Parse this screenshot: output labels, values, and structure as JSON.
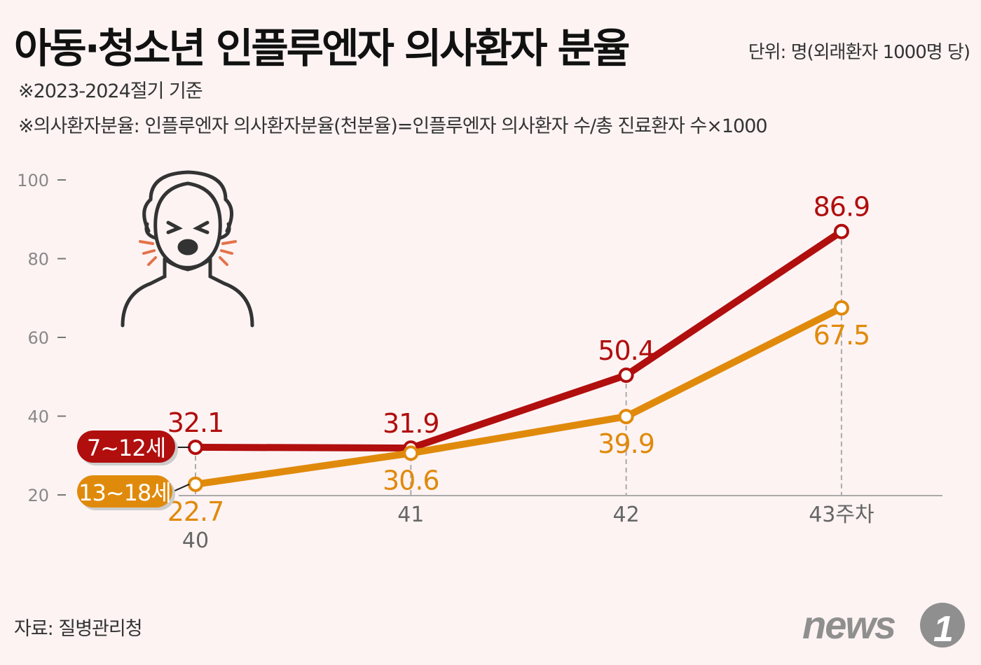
{
  "header": {
    "title": "아동·청소년 인플루엔자 의사환자 분율",
    "unit": "단위: 명(외래환자 1000명 당)",
    "notes": [
      "※2023-2024절기 기준",
      "※의사환자분율: 인플루엔자 의사환자분율(천분율)=인플루엔자 의사환자 수/총 진료환자 수×1000"
    ]
  },
  "footer": {
    "source": "자료: 질병관리청",
    "logo": "news1"
  },
  "chart_data": {
    "type": "line",
    "categories": [
      "40",
      "41",
      "42",
      "43주차"
    ],
    "yticks": [
      "20",
      "40",
      "60",
      "80",
      "100"
    ],
    "ylim": [
      20,
      100
    ],
    "grid": false,
    "legend": "left, labels at series start",
    "series": [
      {
        "name": "7~12세",
        "color": "#b10e0e",
        "values": [
          32.1,
          31.9,
          50.4,
          86.9
        ],
        "labels": [
          "32.1",
          "31.9",
          "50.4",
          "86.9"
        ]
      },
      {
        "name": "13~18세",
        "color": "#e08a0c",
        "values": [
          22.7,
          30.6,
          39.9,
          67.5
        ],
        "labels": [
          "22.7",
          "30.6",
          "39.9",
          "67.5"
        ]
      }
    ]
  },
  "icon": "coughing-person-icon"
}
